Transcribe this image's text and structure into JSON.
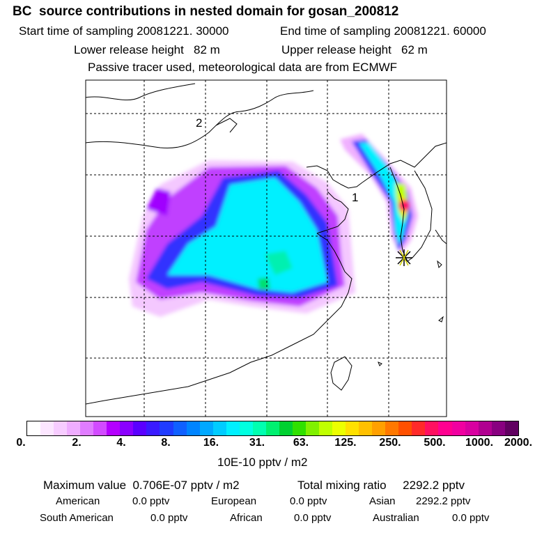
{
  "header": {
    "title": "BC  source contributions in nested domain for gosan_200812",
    "start": "Start time of sampling 20081221. 30000",
    "end": "End time of sampling 20081221. 60000",
    "lower": "Lower release height   82 m",
    "upper": "Upper release height   62 m",
    "note": "Passive tracer used, meteorological data are from ECMWF"
  },
  "map": {
    "label_domain_2": "2",
    "label_domain_1": "1",
    "receptor_icon": "asterisk-star-icon",
    "plume_colors": [
      "#f0b0ff",
      "#b000ff",
      "#2020ff",
      "#00ffff",
      "#00ff80",
      "#ffff00",
      "#ff2060"
    ]
  },
  "colorbar": {
    "ticks": [
      "0.",
      "2.",
      "4.",
      "8.",
      "16.",
      "31.",
      "63.",
      "125.",
      "250.",
      "500.",
      "1000.",
      "2000."
    ],
    "colors": [
      "#ffffff",
      "#fce6ff",
      "#f7ccff",
      "#efadff",
      "#e07cff",
      "#d24bff",
      "#b400ff",
      "#8a00ff",
      "#5a00ff",
      "#3a1aff",
      "#1f3cff",
      "#1060ff",
      "#0084ff",
      "#00a8ff",
      "#00ccff",
      "#00f0ff",
      "#00ffe0",
      "#00ffb0",
      "#00f070",
      "#00d030",
      "#30e000",
      "#80f000",
      "#c0ff00",
      "#ecff00",
      "#ffe000",
      "#ffc000",
      "#ffa000",
      "#ff7800",
      "#ff5000",
      "#ff2a2a",
      "#ff1060",
      "#ff0090",
      "#f000a0",
      "#d800a0",
      "#b00090",
      "#880080",
      "#600060"
    ],
    "unit": "10E-10 pptv / m2"
  },
  "stats": {
    "max": "Maximum value  0.706E-07 pptv / m2",
    "total": "Total mixing ratio     2292.2 pptv",
    "american_label": "American",
    "american_value": "0.0 pptv",
    "european_label": "European",
    "european_value": "0.0 pptv",
    "asian_label": "Asian",
    "asian_value": "2292.2 pptv",
    "south_american_label": "South American",
    "south_american_value": "0.0 pptv",
    "african_label": "African",
    "african_value": "0.0 pptv",
    "australian_label": "Australian",
    "australian_value": "0.0 pptv"
  }
}
